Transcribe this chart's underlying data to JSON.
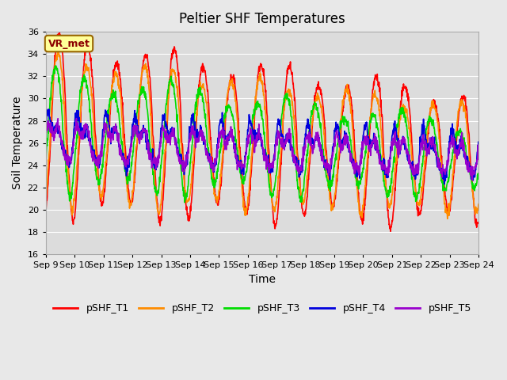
{
  "title": "Peltier SHF Temperatures",
  "xlabel": "Time",
  "ylabel": "Soil Temperature",
  "ylim": [
    16,
    36
  ],
  "yticks": [
    16,
    18,
    20,
    22,
    24,
    26,
    28,
    30,
    32,
    34,
    36
  ],
  "xtick_labels": [
    "Sep 9",
    "Sep 10",
    "Sep 11",
    "Sep 12",
    "Sep 13",
    "Sep 14",
    "Sep 15",
    "Sep 16",
    "Sep 17",
    "Sep 18",
    "Sep 19",
    "Sep 20",
    "Sep 21",
    "Sep 22",
    "Sep 23",
    "Sep 24"
  ],
  "annotation_text": "VR_met",
  "annotation_color": "#8B0000",
  "annotation_bg": "#FFFF99",
  "annotation_border": "#996600",
  "series": {
    "pSHF_T1": {
      "color": "#FF0000",
      "linewidth": 1.2
    },
    "pSHF_T2": {
      "color": "#FF8C00",
      "linewidth": 1.2
    },
    "pSHF_T3": {
      "color": "#00DD00",
      "linewidth": 1.2
    },
    "pSHF_T4": {
      "color": "#0000DD",
      "linewidth": 1.2
    },
    "pSHF_T5": {
      "color": "#9900CC",
      "linewidth": 1.2
    }
  },
  "bg_color": "#E8E8E8",
  "plot_bg_color": "#DCDCDC",
  "grid_color": "#FFFFFF",
  "title_fontsize": 12,
  "axis_label_fontsize": 10,
  "tick_fontsize": 8,
  "legend_fontsize": 9
}
